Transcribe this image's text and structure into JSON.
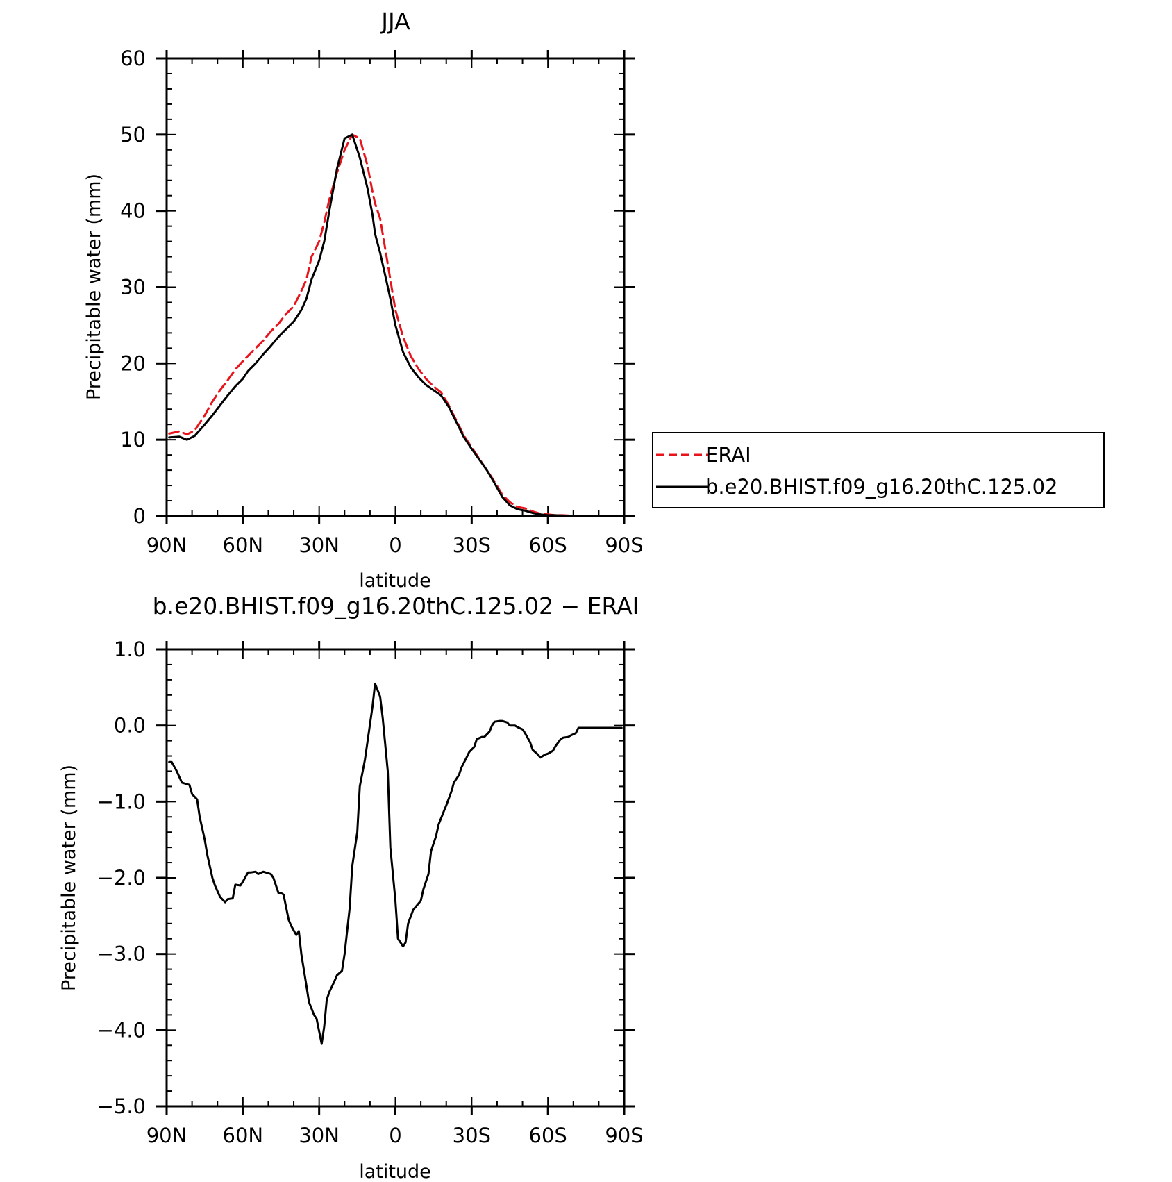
{
  "colors": {
    "erai": "#e8141b",
    "model": "#000000"
  },
  "chart_data": [
    {
      "type": "line",
      "title": "JJA",
      "xlabel": "latitude",
      "ylabel": "Precipitable water (mm)",
      "xlim": [
        90,
        -90
      ],
      "ylim": [
        0,
        60
      ],
      "x_ticks": [
        90,
        60,
        30,
        0,
        -30,
        -60,
        -90
      ],
      "x_tick_labels": [
        "90N",
        "60N",
        "30N",
        "0",
        "30S",
        "60S",
        "90S"
      ],
      "y_ticks": [
        0,
        10,
        20,
        30,
        40,
        50,
        60
      ],
      "y_tick_labels": [
        "0",
        "10",
        "20",
        "30",
        "40",
        "50",
        "60"
      ],
      "legend": {
        "position": "right",
        "entries": [
          "ERAI",
          "b.e20.BHIST.f09_g16.20thC.125.02"
        ]
      },
      "series": [
        {
          "name": "ERAI",
          "style": "dashed",
          "color": "#e8141b",
          "x": [
            89,
            85,
            82,
            79,
            75,
            72,
            69,
            66,
            63,
            60,
            58,
            55,
            52,
            49,
            46,
            43,
            40,
            37,
            35,
            33,
            30,
            28,
            26,
            23,
            20,
            17,
            14,
            11,
            9,
            8,
            6,
            4,
            2,
            0,
            -3,
            -6,
            -9,
            -12,
            -15,
            -18,
            -21,
            -24,
            -27,
            -30,
            -33,
            -36,
            -39,
            -42,
            -45,
            -48,
            -51,
            -54,
            -57,
            -60,
            -63,
            -66,
            -69,
            -72,
            -75,
            -78,
            -81,
            -84,
            -87,
            -89
          ],
          "y": [
            10.8,
            11.1,
            10.7,
            11.2,
            13.2,
            15.0,
            16.5,
            17.8,
            19.2,
            20.3,
            21.0,
            22.0,
            23.0,
            24.2,
            25.2,
            26.5,
            27.5,
            29.5,
            31.0,
            34.0,
            36.0,
            38.5,
            41.5,
            45.0,
            48.0,
            50.0,
            49.5,
            46.0,
            42.5,
            41.0,
            39.0,
            35.0,
            31.0,
            27.0,
            23.5,
            21.0,
            19.3,
            18.0,
            17.0,
            16.2,
            14.5,
            12.5,
            10.5,
            9.0,
            7.5,
            6.0,
            4.5,
            2.8,
            1.8,
            1.2,
            1.0,
            0.6,
            0.3,
            0.2,
            0.1,
            0.1,
            0.05,
            0.05,
            0.05,
            0.05,
            0.05,
            0.05,
            0.05,
            0.05
          ]
        },
        {
          "name": "b.e20.BHIST.f09_g16.20thC.125.02",
          "style": "solid",
          "color": "#000000",
          "x": [
            89,
            85,
            82,
            79,
            75,
            72,
            69,
            66,
            63,
            60,
            58,
            55,
            52,
            49,
            46,
            43,
            40,
            37,
            35,
            33,
            30,
            28,
            26,
            23,
            20,
            17,
            14,
            11,
            9,
            8,
            6,
            4,
            2,
            0,
            -3,
            -6,
            -9,
            -12,
            -15,
            -18,
            -21,
            -24,
            -27,
            -30,
            -33,
            -36,
            -39,
            -42,
            -45,
            -48,
            -51,
            -54,
            -57,
            -60,
            -63,
            -66,
            -69,
            -72,
            -75,
            -78,
            -81,
            -84,
            -87,
            -89
          ],
          "y": [
            10.3,
            10.4,
            10.0,
            10.5,
            12.0,
            13.2,
            14.5,
            15.8,
            17.0,
            18.0,
            19.0,
            20.0,
            21.2,
            22.3,
            23.5,
            24.5,
            25.5,
            27.0,
            28.5,
            31.0,
            33.5,
            36.0,
            40.0,
            45.5,
            49.5,
            50.0,
            47.0,
            43.0,
            39.5,
            37.0,
            34.5,
            31.5,
            28.5,
            25.0,
            21.5,
            19.5,
            18.2,
            17.2,
            16.5,
            15.8,
            14.3,
            12.3,
            10.3,
            8.8,
            7.4,
            6.0,
            4.3,
            2.5,
            1.4,
            0.9,
            0.7,
            0.4,
            0.2,
            0.1,
            0.1,
            0.05,
            0.05,
            0.05,
            0.05,
            0.05,
            0.05,
            0.05,
            0.05,
            0.05
          ]
        }
      ]
    },
    {
      "type": "line",
      "title": "b.e20.BHIST.f09_g16.20thC.125.02 − ERAI",
      "xlabel": "latitude",
      "ylabel": "Precipitable water (mm)",
      "xlim": [
        90,
        -90
      ],
      "ylim": [
        -5,
        1
      ],
      "x_ticks": [
        90,
        60,
        30,
        0,
        -30,
        -60,
        -90
      ],
      "x_tick_labels": [
        "90N",
        "60N",
        "30N",
        "0",
        "30S",
        "60S",
        "90S"
      ],
      "y_ticks": [
        1,
        0,
        -1,
        -2,
        -3,
        -4,
        -5
      ],
      "y_tick_labels": [
        "1.0",
        "0.0",
        "−1.0",
        "−2.0",
        "−3.0",
        "−4.0",
        "−5.0"
      ],
      "series": [
        {
          "style": "solid",
          "color": "#000000",
          "x": [
            89,
            88,
            86,
            84,
            83,
            81,
            80,
            78,
            77,
            75,
            74,
            72,
            71,
            69,
            67,
            66,
            64,
            63,
            61,
            60,
            58,
            57,
            55,
            54,
            52,
            51,
            49,
            48,
            46,
            45,
            44,
            42,
            41,
            39,
            38,
            37,
            35,
            34,
            32,
            31,
            29,
            28,
            27,
            26,
            24,
            23,
            21,
            20,
            18,
            17,
            15,
            14,
            12,
            11,
            9,
            8,
            6,
            5,
            3,
            2,
            0,
            -1,
            -3,
            -4,
            -5,
            -7,
            -8,
            -10,
            -11,
            -13,
            -14,
            -16,
            -17,
            -19,
            -20,
            -22,
            -23,
            -25,
            -26,
            -28,
            -29,
            -31,
            -32,
            -34,
            -35,
            -37,
            -38,
            -39,
            -41,
            -42,
            -44,
            -45,
            -47,
            -48,
            -50,
            -51,
            -53,
            -54,
            -56,
            -57,
            -59,
            -60,
            -62,
            -63,
            -65,
            -66,
            -68,
            -69,
            -71,
            -72,
            -74,
            -75,
            -77,
            -78,
            -80,
            -81,
            -83,
            -84,
            -86,
            -87,
            -89
          ],
          "y": [
            -0.48,
            -0.48,
            -0.6,
            -0.75,
            -0.76,
            -0.78,
            -0.9,
            -0.97,
            -1.2,
            -1.5,
            -1.7,
            -2.0,
            -2.1,
            -2.25,
            -2.32,
            -2.28,
            -2.27,
            -2.09,
            -2.1,
            -2.05,
            -1.93,
            -1.93,
            -1.92,
            -1.95,
            -1.92,
            -1.93,
            -1.95,
            -2.0,
            -2.2,
            -2.2,
            -2.22,
            -2.55,
            -2.63,
            -2.75,
            -2.7,
            -3.0,
            -3.42,
            -3.63,
            -3.8,
            -3.85,
            -4.18,
            -3.95,
            -3.6,
            -3.5,
            -3.36,
            -3.28,
            -3.22,
            -3.0,
            -2.4,
            -1.85,
            -1.4,
            -0.8,
            -0.45,
            -0.22,
            0.25,
            0.55,
            0.38,
            0.1,
            -0.6,
            -1.6,
            -2.3,
            -2.8,
            -2.9,
            -2.85,
            -2.6,
            -2.42,
            -2.38,
            -2.3,
            -2.15,
            -1.95,
            -1.65,
            -1.45,
            -1.3,
            -1.13,
            -1.05,
            -0.87,
            -0.75,
            -0.65,
            -0.55,
            -0.42,
            -0.35,
            -0.28,
            -0.18,
            -0.15,
            -0.15,
            -0.08,
            0.0,
            0.05,
            0.06,
            0.06,
            0.04,
            0.0,
            0.0,
            -0.02,
            -0.05,
            -0.1,
            -0.22,
            -0.32,
            -0.38,
            -0.42,
            -0.38,
            -0.37,
            -0.33,
            -0.27,
            -0.18,
            -0.16,
            -0.15,
            -0.13,
            -0.1,
            -0.03,
            -0.03,
            -0.03,
            -0.03,
            -0.03,
            -0.03,
            -0.03,
            -0.03,
            -0.03,
            -0.03,
            -0.03,
            -0.03
          ]
        }
      ]
    }
  ]
}
